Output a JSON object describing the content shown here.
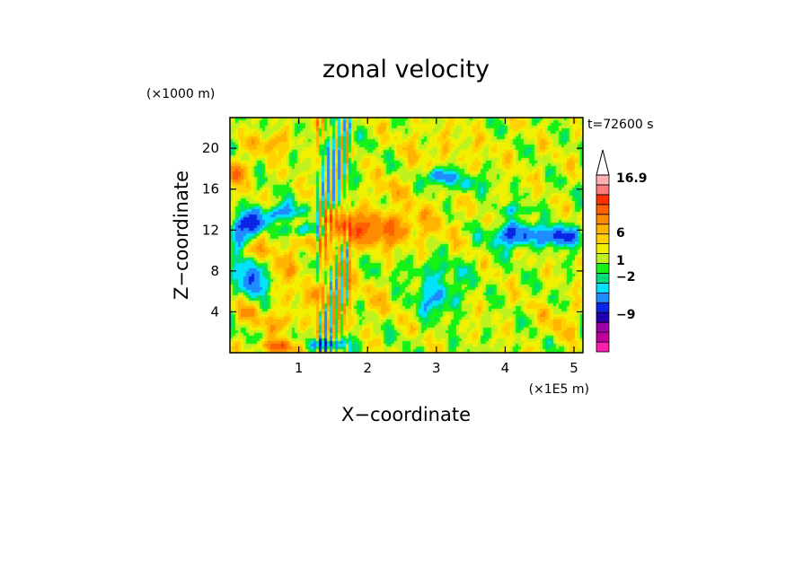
{
  "chart_data": {
    "type": "heatmap",
    "title": "zonal velocity",
    "xlabel": "X−coordinate",
    "ylabel": "Z−coordinate",
    "x_unit": "(×1E5 m)",
    "y_unit": "(×1000 m)",
    "time_label": "t=72600 s",
    "xlim": [
      0,
      5.13
    ],
    "ylim": [
      0,
      23
    ],
    "x_ticks": [
      1,
      2,
      3,
      4,
      5
    ],
    "x_tick_labels": [
      "1",
      "2",
      "3",
      "4",
      "5"
    ],
    "y_ticks": [
      4,
      8,
      12,
      16,
      20
    ],
    "y_tick_labels": [
      "4",
      "8",
      "12",
      "16",
      "20"
    ],
    "colorbar": {
      "labels": [
        "16.9",
        "6",
        "1",
        "−2",
        "−9"
      ],
      "colors": [
        "#ff1fae",
        "#c0009e",
        "#9a00a6",
        "#2000b4",
        "#0a24e6",
        "#1e8cff",
        "#00e2ff",
        "#00dc7a",
        "#16f216",
        "#bef21e",
        "#f0f000",
        "#ffd200",
        "#ffb400",
        "#ff8c00",
        "#ff6000",
        "#ff3000",
        "#ff7a7a",
        "#ffb0b0"
      ],
      "extend": "max"
    },
    "features": [
      {
        "x": 1.5,
        "z": 12.2,
        "sx": 0.85,
        "sz": 1.7,
        "v": 4.5
      },
      {
        "x": 2.3,
        "z": 12.0,
        "sx": 0.4,
        "sz": 1.6,
        "v": 2.5
      },
      {
        "x": 0.3,
        "z": 12.5,
        "sx": 0.22,
        "sz": 1.0,
        "v": -6.5
      },
      {
        "x": 1.05,
        "z": 12.0,
        "sx": 0.3,
        "sz": 0.8,
        "v": -6.5
      },
      {
        "x": 0.75,
        "z": 13.6,
        "sx": 0.38,
        "sz": 0.9,
        "v": -5.0
      },
      {
        "x": 0.35,
        "z": 7.3,
        "sx": 0.17,
        "sz": 1.7,
        "v": -6.0
      },
      {
        "x": 0.1,
        "z": 10.5,
        "sx": 0.18,
        "sz": 2.0,
        "v": -3.5
      },
      {
        "x": 3.05,
        "z": 17.3,
        "sx": 0.17,
        "sz": 0.8,
        "v": -6.0
      },
      {
        "x": 3.4,
        "z": 16.5,
        "sx": 0.3,
        "sz": 1.0,
        "v": -2.5
      },
      {
        "x": 4.15,
        "z": 11.5,
        "sx": 0.32,
        "sz": 1.1,
        "v": -6.0
      },
      {
        "x": 4.8,
        "z": 11.4,
        "sx": 0.25,
        "sz": 0.9,
        "v": -6.5
      },
      {
        "x": 4.15,
        "z": 14.0,
        "sx": 0.3,
        "sz": 0.5,
        "v": -2.0
      },
      {
        "x": 3.0,
        "z": 5.4,
        "sx": 0.3,
        "sz": 1.6,
        "v": -3.5
      },
      {
        "x": 3.0,
        "z": 8.0,
        "sx": 0.6,
        "sz": 1.2,
        "v": -1.5
      },
      {
        "x": 3.0,
        "z": 20.0,
        "sx": 0.6,
        "sz": 2.5,
        "v": 1.0
      },
      {
        "x": 3.9,
        "z": 19.5,
        "sx": 0.5,
        "sz": 2.0,
        "v": 0.3
      },
      {
        "x": 4.6,
        "z": 18.0,
        "sx": 0.3,
        "sz": 1.0,
        "v": 0.5
      },
      {
        "x": 3.0,
        "z": 13.5,
        "sx": 0.5,
        "sz": 3.0,
        "v": 0.8
      },
      {
        "x": 4.0,
        "z": 4.5,
        "sx": 0.7,
        "sz": 1.5,
        "v": 0.2
      },
      {
        "x": 4.8,
        "z": 3.0,
        "sx": 0.25,
        "sz": 1.5,
        "v": 1.5
      },
      {
        "x": 0.05,
        "z": 17.8,
        "sx": 0.25,
        "sz": 1.2,
        "v": 3.5
      },
      {
        "x": 0.3,
        "z": 10.0,
        "sx": 0.25,
        "sz": 0.8,
        "v": 3.0
      },
      {
        "x": 1.2,
        "z": 5.5,
        "sx": 0.35,
        "sz": 1.2,
        "v": 2.0
      },
      {
        "x": 0.75,
        "z": 3.0,
        "sx": 0.3,
        "sz": 0.9,
        "v": 2.5
      },
      {
        "x": 0.7,
        "z": 0.6,
        "sx": 0.3,
        "sz": 0.6,
        "v": 5.0
      },
      {
        "x": 0.8,
        "z": 8.5,
        "sx": 0.35,
        "sz": 1.5,
        "v": 2.0
      },
      {
        "x": 2.3,
        "z": 16.0,
        "sx": 0.3,
        "sz": 1.0,
        "v": 1.5
      },
      {
        "x": 2.05,
        "z": 5.0,
        "sx": 0.4,
        "sz": 2.0,
        "v": 1.0
      },
      {
        "x": 1.4,
        "z": 0.8,
        "sx": 0.3,
        "sz": 0.6,
        "v": -5.0
      },
      {
        "x": 1.5,
        "z": 17.5,
        "sx": 0.1,
        "sz": 4.0,
        "v": -2.0
      },
      {
        "x": 0.6,
        "z": 20.5,
        "sx": 0.3,
        "sz": 1.0,
        "v": 2.5
      },
      {
        "x": 0.25,
        "z": 4.0,
        "sx": 0.2,
        "sz": 1.0,
        "v": 2.0
      }
    ]
  }
}
